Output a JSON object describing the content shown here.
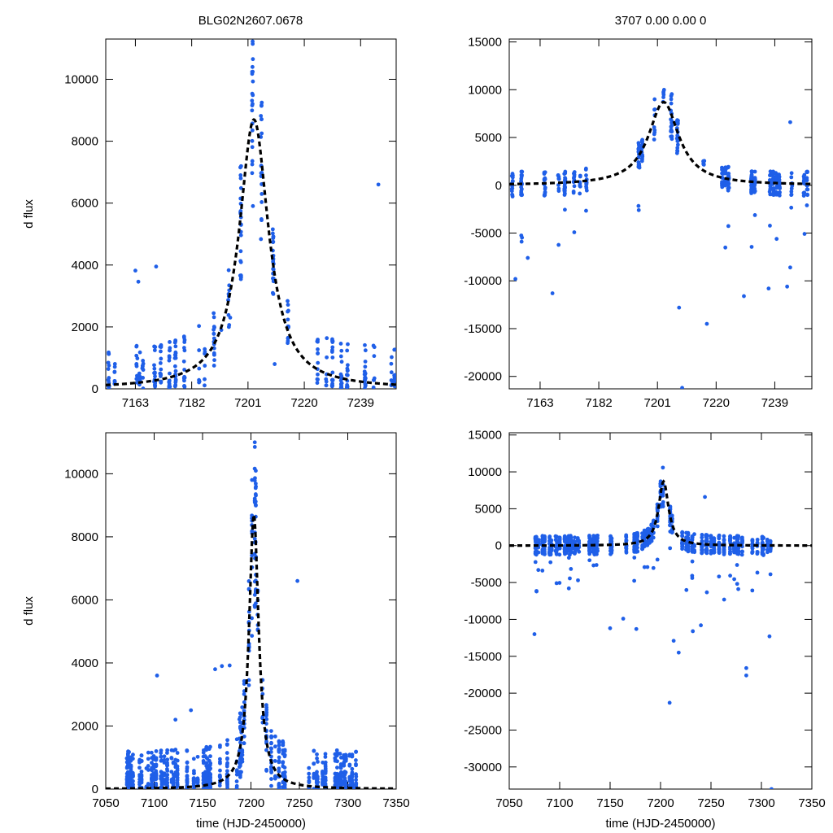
{
  "figure": {
    "title_left": "BLG02N2607.0678",
    "title_right": "3707  0.00  0.00  0",
    "colors": {
      "points": "#1f5fe8",
      "model": "#000000",
      "frame": "#000000"
    }
  },
  "chart_data": [
    {
      "id": "top-left",
      "type": "scatter",
      "title": "BLG02N2607.0678",
      "ylabel": "d flux",
      "xlabel": "",
      "xlim": [
        7153,
        7251
      ],
      "ylim": [
        0,
        11300
      ],
      "xticks": [
        7163,
        7182,
        7201,
        7220,
        7239
      ],
      "yticks": [
        0,
        2000,
        4000,
        6000,
        8000,
        10000
      ],
      "model": {
        "t0": 7203,
        "peak": 8700,
        "base": 0,
        "tE": 6
      },
      "seed": 11,
      "outliers": [
        [
          7163,
          3820
        ],
        [
          7164,
          3460
        ],
        [
          7170,
          3950
        ],
        [
          7245,
          6600
        ],
        [
          7192,
          1900
        ],
        [
          7195,
          2300
        ],
        [
          7210,
          800
        ]
      ]
    },
    {
      "id": "top-right",
      "type": "scatter",
      "title": "3707  0.00  0.00  0",
      "ylabel": "",
      "xlabel": "",
      "xlim": [
        7153,
        7251
      ],
      "ylim": [
        -21300,
        15300
      ],
      "xticks": [
        7163,
        7182,
        7201,
        7220,
        7239
      ],
      "yticks": [
        -20000,
        -15000,
        -10000,
        -5000,
        0,
        5000,
        10000,
        15000
      ],
      "model": {
        "t0": 7203,
        "peak": 8700,
        "base": 0,
        "tE": 6
      },
      "seed": 23,
      "outliers": [
        [
          7155,
          -9800
        ],
        [
          7157,
          -5900
        ],
        [
          7159,
          -7600
        ],
        [
          7167,
          -11300
        ],
        [
          7208,
          -12800
        ],
        [
          7209,
          -21200
        ],
        [
          7217,
          -14500
        ],
        [
          7229,
          -11600
        ],
        [
          7237,
          -10800
        ],
        [
          7243,
          -10600
        ],
        [
          7244,
          6600
        ],
        [
          7244,
          -8600
        ]
      ]
    },
    {
      "id": "bottom-left",
      "type": "scatter",
      "title": "",
      "ylabel": "d flux",
      "xlabel": "time (HJD-2450000)",
      "xlim": [
        7050,
        7350
      ],
      "ylim": [
        0,
        11300
      ],
      "xticks": [
        7050,
        7100,
        7150,
        7200,
        7250,
        7300,
        7350
      ],
      "yticks": [
        0,
        2000,
        4000,
        6000,
        8000,
        10000
      ],
      "model": {
        "t0": 7203,
        "peak": 8700,
        "base": 0,
        "tE": 6
      },
      "seed": 37,
      "outliers": [
        [
          7103,
          3600
        ],
        [
          7163,
          3800
        ],
        [
          7170,
          3900
        ],
        [
          7178,
          3920
        ],
        [
          7248,
          6600
        ],
        [
          7122,
          2200
        ],
        [
          7138,
          2500
        ]
      ]
    },
    {
      "id": "bottom-right",
      "type": "scatter",
      "title": "",
      "ylabel": "",
      "xlabel": "time (HJD-2450000)",
      "xlim": [
        7050,
        7350
      ],
      "ylim": [
        -33000,
        15300
      ],
      "xticks": [
        7050,
        7100,
        7150,
        7200,
        7250,
        7300,
        7350
      ],
      "yticks": [
        -30000,
        -25000,
        -20000,
        -15000,
        -10000,
        -5000,
        0,
        5000,
        10000,
        15000
      ],
      "model": {
        "t0": 7203,
        "peak": 8700,
        "base": 0,
        "tE": 6
      },
      "seed": 53,
      "outliers": [
        [
          7075,
          -12000
        ],
        [
          7150,
          -11200
        ],
        [
          7163,
          -9900
        ],
        [
          7176,
          -11300
        ],
        [
          7209,
          -21300
        ],
        [
          7213,
          -12900
        ],
        [
          7218,
          -14500
        ],
        [
          7232,
          -11600
        ],
        [
          7240,
          -10800
        ],
        [
          7285,
          -16600
        ],
        [
          7285,
          -17600
        ],
        [
          7310,
          -33000
        ],
        [
          7244,
          6600
        ],
        [
          7308,
          -12300
        ]
      ]
    }
  ]
}
